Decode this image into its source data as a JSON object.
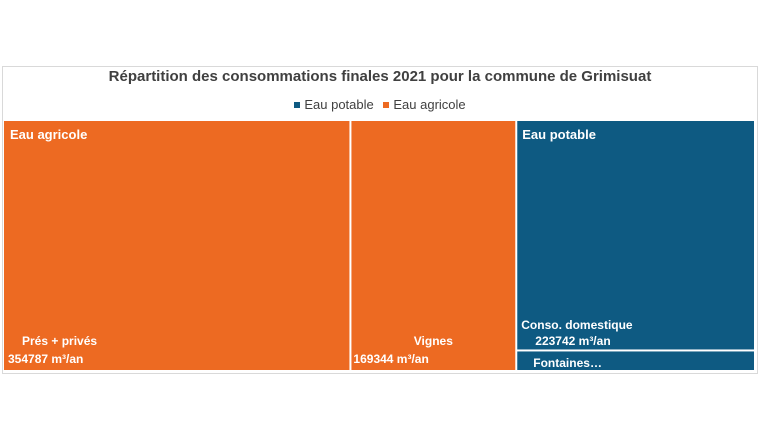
{
  "chart_data": {
    "type": "treemap",
    "title": "Répartition des consommations finales 2021 pour la commune de Grimisuat",
    "legend": {
      "placement": "top"
    },
    "series": [
      {
        "name": "Eau agricole",
        "color": "#ED6A22",
        "items": [
          {
            "label": "Prés + privés",
            "value": 354787,
            "value_text": "354787  m³/an"
          },
          {
            "label": "Vignes",
            "value": 169344,
            "value_text": "169344  m³/an"
          }
        ]
      },
      {
        "name": "Eau potable",
        "color": "#0E5A82",
        "items": [
          {
            "label": "Conso. domestique",
            "value": 223742,
            "value_text": "223742  m³/an"
          },
          {
            "label": "Fontaines…",
            "value": 18000,
            "value_text": ""
          }
        ]
      }
    ]
  },
  "legend_order": [
    1,
    0
  ]
}
